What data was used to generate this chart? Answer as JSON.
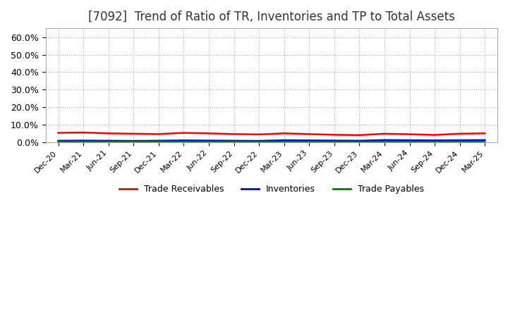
{
  "title": "[7092]  Trend of Ratio of TR, Inventories and TP to Total Assets",
  "title_fontsize": 12,
  "title_color": "#333333",
  "background_color": "#ffffff",
  "plot_background_color": "#ffffff",
  "grid_color": "#aaaaaa",
  "ylim": [
    0.0,
    0.65
  ],
  "yticks": [
    0.0,
    0.1,
    0.2,
    0.3,
    0.4,
    0.5,
    0.6
  ],
  "ytick_labels": [
    "0.0%",
    "10.0%",
    "20.0%",
    "30.0%",
    "40.0%",
    "50.0%",
    "60.0%"
  ],
  "x_labels": [
    "Dec-20",
    "Mar-21",
    "Jun-21",
    "Sep-21",
    "Dec-21",
    "Mar-22",
    "Jun-22",
    "Sep-22",
    "Dec-22",
    "Mar-23",
    "Jun-23",
    "Sep-23",
    "Dec-23",
    "Mar-24",
    "Jun-24",
    "Sep-24",
    "Dec-24",
    "Mar-25"
  ],
  "trade_receivables": [
    0.055,
    0.057,
    0.052,
    0.05,
    0.048,
    0.055,
    0.052,
    0.048,
    0.046,
    0.052,
    0.048,
    0.044,
    0.042,
    0.05,
    0.047,
    0.043,
    0.05,
    0.052
  ],
  "inventories": [
    0.01,
    0.011,
    0.01,
    0.009,
    0.01,
    0.012,
    0.011,
    0.01,
    0.009,
    0.013,
    0.012,
    0.011,
    0.01,
    0.014,
    0.013,
    0.012,
    0.013,
    0.014
  ],
  "trade_payables": [
    0.005,
    0.005,
    0.004,
    0.004,
    0.004,
    0.005,
    0.004,
    0.004,
    0.003,
    0.005,
    0.004,
    0.004,
    0.003,
    0.005,
    0.004,
    0.004,
    0.005,
    0.005
  ],
  "tr_color": "#ff0000",
  "inv_color": "#0000ff",
  "tp_color": "#008000",
  "line_width": 1.8,
  "legend_labels": [
    "Trade Receivables",
    "Inventories",
    "Trade Payables"
  ],
  "legend_ncol": 3,
  "xlabel_rotation": 45,
  "xlabel_fontsize": 8,
  "ylabel_fontsize": 9
}
